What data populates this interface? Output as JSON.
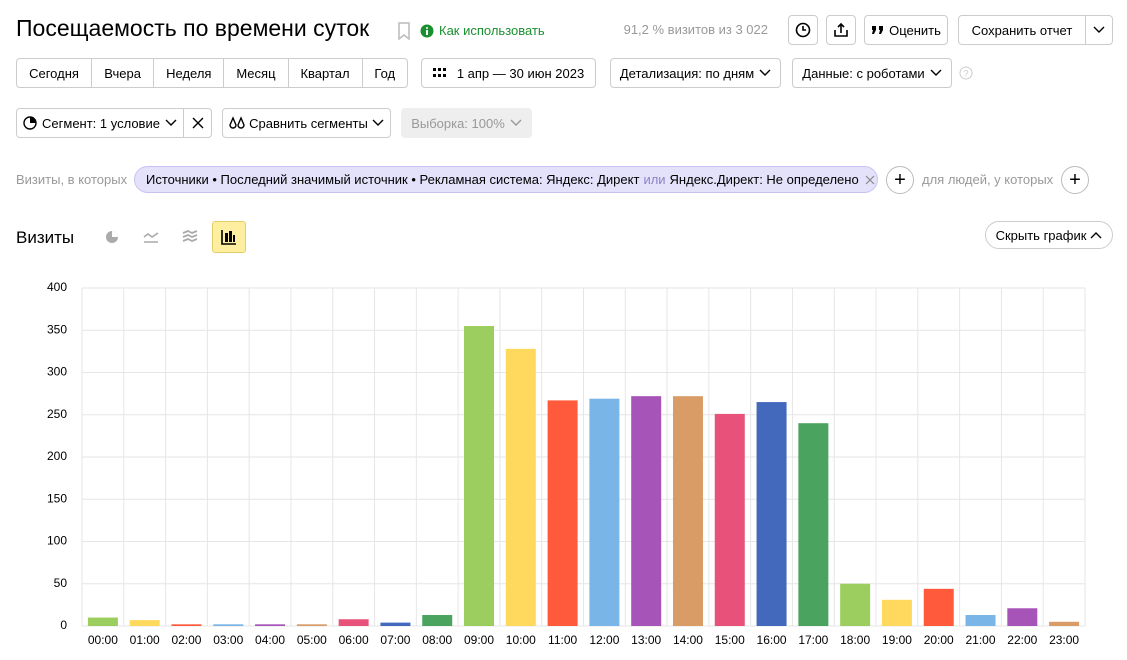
{
  "header": {
    "title": "Посещаемость по времени суток",
    "help_link": "Как использовать",
    "visits_info": "91,2 % визитов из 3 022",
    "rate_button": "Оценить",
    "save_button": "Сохранить отчет"
  },
  "toolbar": {
    "periods": [
      "Сегодня",
      "Вчера",
      "Неделя",
      "Месяц",
      "Квартал",
      "Год"
    ],
    "date_range": "1 апр — 30 июн 2023",
    "detail": "Детализация: по дням",
    "data_mode": "Данные: с роботами"
  },
  "segments": {
    "segment": "Сегмент: 1 условие",
    "compare": "Сравнить сегменты",
    "sample": "Выборка: 100%"
  },
  "filter": {
    "prefix": "Визиты, в которых",
    "condition_part1": "Источники • Последний значимый источник • Рекламная система: Яндекс: Директ",
    "connector": "или",
    "condition_part2": "Яндекс.Директ: Не определено",
    "people_prefix": "для людей, у которых"
  },
  "section": {
    "title": "Визиты",
    "hide_chart": "Скрыть график"
  },
  "chart_data": {
    "type": "bar",
    "categories": [
      "00:00",
      "01:00",
      "02:00",
      "03:00",
      "04:00",
      "05:00",
      "06:00",
      "07:00",
      "08:00",
      "09:00",
      "10:00",
      "11:00",
      "12:00",
      "13:00",
      "14:00",
      "15:00",
      "16:00",
      "17:00",
      "18:00",
      "19:00",
      "20:00",
      "21:00",
      "22:00",
      "23:00"
    ],
    "values": [
      10,
      7,
      2,
      2,
      2,
      2,
      8,
      4,
      13,
      355,
      328,
      267,
      269,
      272,
      272,
      251,
      265,
      240,
      50,
      31,
      44,
      13,
      21,
      5
    ],
    "colors": [
      "#9ccd5f",
      "#ffd95e",
      "#ff5a3c",
      "#79b6e7",
      "#a754b9",
      "#d99c66",
      "#e8527a",
      "#4369bd",
      "#4aa35f",
      "#9ccd5f",
      "#ffd95e",
      "#ff5a3c",
      "#79b6e7",
      "#a754b9",
      "#d99c66",
      "#e8527a",
      "#4369bd",
      "#4aa35f",
      "#9ccd5f",
      "#ffd95e",
      "#ff5a3c",
      "#79b6e7",
      "#a754b9",
      "#d99c66"
    ],
    "ylim": [
      0,
      400
    ],
    "yticks": [
      0,
      50,
      100,
      150,
      200,
      250,
      300,
      350,
      400
    ],
    "grid": true
  }
}
